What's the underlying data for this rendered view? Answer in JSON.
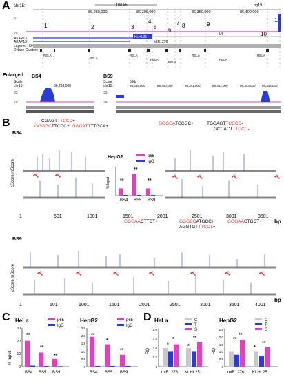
{
  "panelA": {
    "letter": "A",
    "chrom": "chr15:",
    "scale_label": "100 kb",
    "genome": "hg19",
    "positions": [
      "86,250,000",
      "86,300,000",
      "86,350,000",
      "86,400,000"
    ],
    "site_numbers": [
      "1",
      "2",
      "3",
      "4",
      "5",
      "6",
      "7",
      "8",
      "9",
      "10",
      "11"
    ],
    "genes": {
      "g1": "AKAP13",
      "g2": "AKAP13",
      "g3": "KLHL25",
      "g4": "MIR1276",
      "g5": "U6"
    },
    "tracks": {
      "h3k27ac": "Layered H3K27Ac",
      "dnase": "DNase Clusters",
      "rela": "RELA"
    },
    "enlarged_label": "Enlarged",
    "bs4": {
      "title": "BS4",
      "scale": "Scale",
      "chrom": "chr15:",
      "pos": "86,293,000",
      "ymax": "33",
      "ymin": "2a"
    },
    "bs9": {
      "title": "BS9",
      "scale": "Scale",
      "chrom": "chr15:",
      "kb": "5 kb",
      "ymax": "33",
      "ymin": "2a",
      "positions": [
        "86,339,000",
        "86,340,000",
        "86,341,000",
        "86,342,000",
        "86,343,000",
        "86,344,000"
      ]
    }
  },
  "panelB": {
    "letter": "B",
    "bs4_title": "BS4",
    "bs9_title": "BS9",
    "ylabel": "cScore mScore",
    "x_unit": "bp",
    "ticks_top": [
      "1",
      "501",
      "1001",
      "1501",
      "2001",
      "2501",
      "3001",
      "3501"
    ],
    "ticks_bottom": [
      "1",
      "501",
      "1001",
      "1501",
      "2001",
      "2501",
      "3001",
      "3501",
      "4001"
    ],
    "inset": {
      "title": "HepG2",
      "ylabel": "% Input",
      "legend": [
        "p65",
        "IgG"
      ],
      "categories": [
        "BS4",
        "BS5",
        "BS9"
      ],
      "sig": [
        "**",
        "**",
        "**"
      ]
    }
  },
  "panelC": {
    "letter": "C",
    "ylabel": "% Input",
    "legend": [
      "p65",
      "IgG"
    ],
    "hela": {
      "title": "HeLa",
      "categories": [
        "BS4",
        "BS5",
        "BS9"
      ],
      "sig": [
        "**",
        "**",
        "**"
      ],
      "yticks": [
        "0",
        "10",
        "20",
        "30"
      ]
    },
    "hepg2": {
      "title": "HepG2",
      "categories": [
        "BS4",
        "BS5",
        "BS9"
      ],
      "sig": [
        "**",
        "*",
        "**"
      ],
      "yticks": [
        "0",
        "0.5",
        "1.0",
        "1.5",
        "2.0",
        "2.5"
      ]
    }
  },
  "panelD": {
    "letter": "D",
    "ylabel": "RQ",
    "legend": [
      "C",
      "T",
      "S"
    ],
    "hela": {
      "title": "HeLa",
      "categories": [
        "miR1276",
        "KLHL25"
      ],
      "sig": [
        "*",
        "*",
        "*",
        "**"
      ],
      "yticks": [
        "0",
        "0.5",
        "1.0",
        "1.5",
        "2.0"
      ]
    },
    "hepg2": {
      "title": "HepG2",
      "categories": [
        "miR1276",
        "KLHL25"
      ],
      "sig": [
        "**",
        "*",
        "**",
        "**"
      ],
      "yticks": [
        "0",
        "0.5",
        "1.0",
        "1.5",
        "2.0",
        "2.5"
      ]
    }
  },
  "colors": {
    "p65": "#e23fc1",
    "igg": "#2a3bd6",
    "C": "#c8c8c8",
    "T": "#2a3bd6",
    "S": "#e23fc1",
    "red": "#e8322e"
  },
  "chart_data": [
    {
      "type": "bar",
      "title": "HepG2",
      "categories": [
        "BS4",
        "BS5",
        "BS9"
      ],
      "ylabel": "% Input",
      "ylim": [
        0,
        2
      ],
      "series": [
        {
          "name": "p65",
          "values": [
            0.5,
            1.5,
            0.5
          ]
        },
        {
          "name": "IgG",
          "values": [
            0.05,
            0.05,
            0.05
          ]
        }
      ]
    },
    {
      "type": "bar",
      "title": "HeLa",
      "categories": [
        "BS4",
        "BS5",
        "BS9"
      ],
      "ylabel": "% Input",
      "ylim": [
        0,
        30
      ],
      "series": [
        {
          "name": "p65",
          "values": [
            20,
            11,
            6
          ]
        },
        {
          "name": "IgG",
          "values": [
            0.8,
            0.5,
            0.4
          ]
        }
      ]
    },
    {
      "type": "bar",
      "title": "HepG2",
      "categories": [
        "BS4",
        "BS5",
        "BS9"
      ],
      "ylabel": "% Input",
      "ylim": [
        0,
        2.5
      ],
      "series": [
        {
          "name": "p65",
          "values": [
            2.0,
            1.5,
            0.8
          ]
        },
        {
          "name": "IgG",
          "values": [
            0.05,
            0.05,
            0.05
          ]
        }
      ]
    },
    {
      "type": "bar",
      "title": "HeLa",
      "categories": [
        "miR1276",
        "KLHL25"
      ],
      "ylabel": "RQ",
      "ylim": [
        0,
        2
      ],
      "series": [
        {
          "name": "C",
          "values": [
            1.0,
            1.0
          ]
        },
        {
          "name": "T",
          "values": [
            0.8,
            0.8
          ]
        },
        {
          "name": "S",
          "values": [
            1.2,
            1.3
          ]
        }
      ]
    },
    {
      "type": "bar",
      "title": "HepG2",
      "categories": [
        "miR1276",
        "KLHL25"
      ],
      "ylabel": "RQ",
      "ylim": [
        0,
        2.5
      ],
      "series": [
        {
          "name": "C",
          "values": [
            1.0,
            1.0
          ]
        },
        {
          "name": "T",
          "values": [
            0.8,
            0.7
          ]
        },
        {
          "name": "S",
          "values": [
            1.8,
            1.3
          ]
        }
      ]
    }
  ]
}
